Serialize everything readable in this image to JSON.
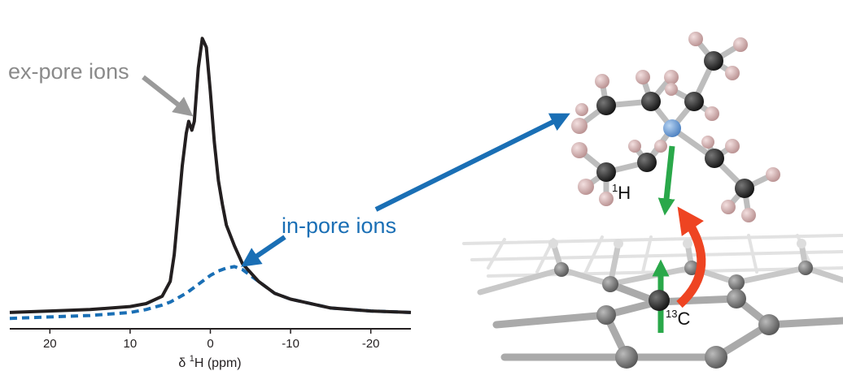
{
  "chart_data": {
    "type": "line",
    "xlim": [
      25,
      -25
    ],
    "xticks": [
      20,
      10,
      0,
      -10,
      -20
    ],
    "ylim": [
      0,
      100
    ],
    "x_label": {
      "prefix": "δ ",
      "sup": "1",
      "suffix": "H (ppm)"
    },
    "series": [
      {
        "name": "ex-pore ions",
        "color": "#231f20",
        "dash": false,
        "x": [
          25,
          20,
          15,
          10,
          8,
          6,
          5,
          4.5,
          4,
          3.5,
          3,
          2.7,
          2.3,
          2,
          1.5,
          1,
          0.5,
          0,
          -0.5,
          -1,
          -1.5,
          -2,
          -3,
          -4,
          -5,
          -6,
          -8,
          -10,
          -15,
          -20,
          -25
        ],
        "values": [
          5.5,
          6,
          6.5,
          7.5,
          8.5,
          11,
          16,
          25,
          40,
          55,
          66,
          70,
          67,
          70,
          88,
          98,
          95,
          80,
          63,
          50,
          42,
          35,
          28,
          22,
          19,
          16,
          12,
          10,
          7,
          6,
          5.5
        ]
      },
      {
        "name": "in-pore ions",
        "color": "#1a6fb5",
        "dash": true,
        "x": [
          25,
          20,
          15,
          10,
          8,
          6,
          5,
          4,
          3,
          2,
          1,
          0,
          -1,
          -2,
          -3,
          -4,
          -5,
          -6,
          -8,
          -10,
          -15,
          -20,
          -25
        ],
        "values": [
          3.5,
          4,
          4.5,
          5.5,
          6.5,
          8,
          9,
          10.5,
          12,
          14,
          16,
          18,
          19.5,
          20.5,
          21,
          20,
          18,
          16,
          12,
          10,
          7,
          6,
          5.5
        ]
      }
    ]
  },
  "illustration": {
    "labels": [
      {
        "mass": "1",
        "element": "H"
      },
      {
        "mass": "13",
        "element": "C"
      }
    ]
  }
}
